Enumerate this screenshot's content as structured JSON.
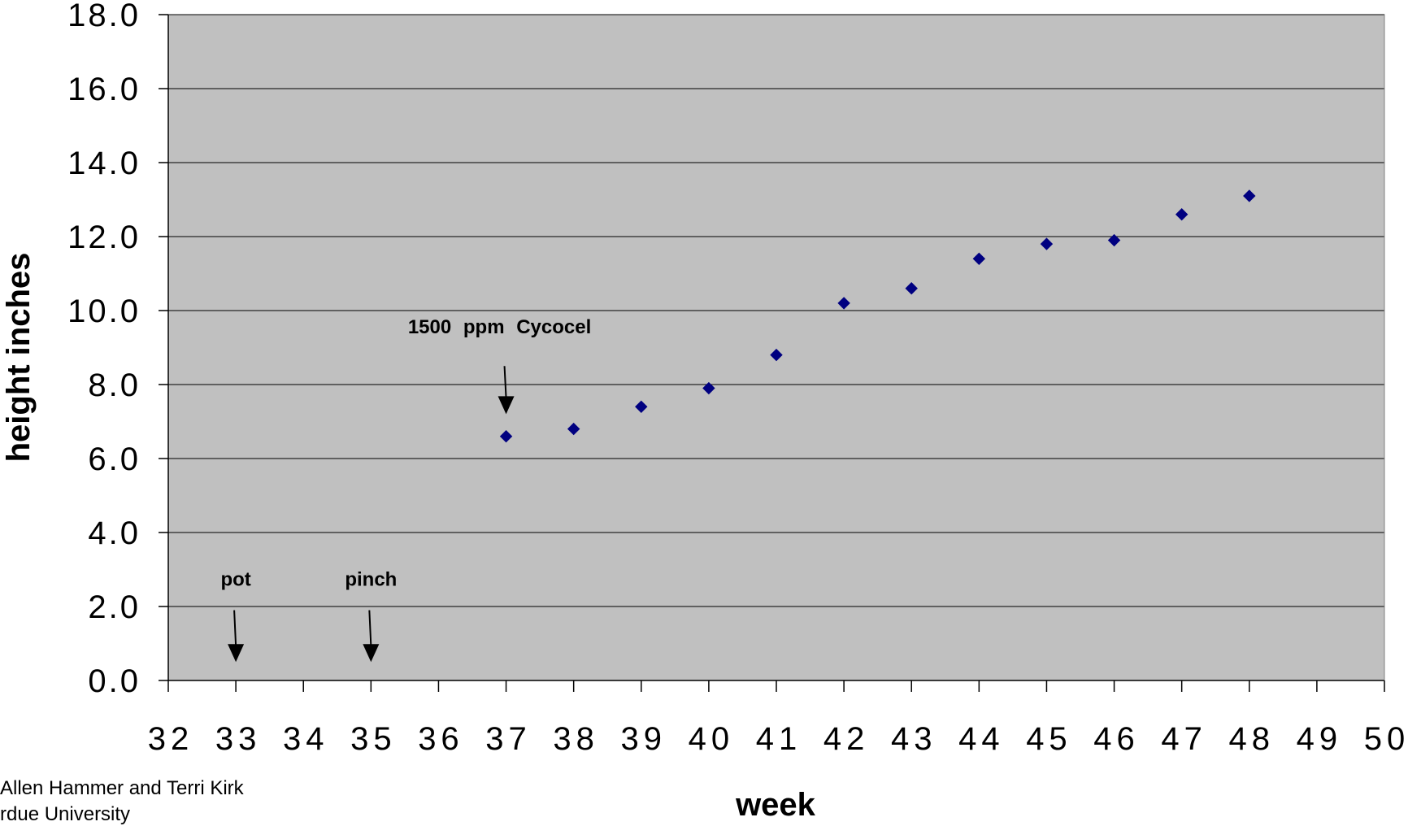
{
  "chart_data": {
    "type": "scatter",
    "title": "",
    "xlabel": "week",
    "ylabel": "height inches",
    "xlim": [
      32,
      50
    ],
    "ylim": [
      0,
      18
    ],
    "x_ticks": [
      32,
      33,
      34,
      35,
      36,
      37,
      38,
      39,
      40,
      41,
      42,
      43,
      44,
      45,
      46,
      47,
      48,
      49,
      50
    ],
    "x_tick_labels": [
      "32",
      "33",
      "34",
      "35",
      "36",
      "37",
      "38",
      "39",
      "40",
      "41",
      "42",
      "43",
      "44",
      "45",
      "46",
      "47",
      "48",
      "49",
      "50"
    ],
    "y_ticks": [
      0,
      2,
      4,
      6,
      8,
      10,
      12,
      14,
      16,
      18
    ],
    "y_tick_labels": [
      "0.0",
      "2.0",
      "4.0",
      "6.0",
      "8.0",
      "10.0",
      "12.0",
      "14.0",
      "16.0",
      "18.0"
    ],
    "grid": true,
    "legend": "none",
    "colors": {
      "plot_area": "#c0c0c0",
      "marker": "#000080",
      "gridline": "#000000"
    },
    "series": [
      {
        "marker": "diamond",
        "points": [
          {
            "x": 37,
            "y": 6.6
          },
          {
            "x": 38,
            "y": 6.8
          },
          {
            "x": 39,
            "y": 7.4
          },
          {
            "x": 40,
            "y": 7.9
          },
          {
            "x": 41,
            "y": 8.8
          },
          {
            "x": 42,
            "y": 10.2
          },
          {
            "x": 43,
            "y": 10.6
          },
          {
            "x": 44,
            "y": 11.4
          },
          {
            "x": 45,
            "y": 11.8
          },
          {
            "x": 46,
            "y": 11.9
          },
          {
            "x": 47,
            "y": 12.6
          },
          {
            "x": 48,
            "y": 13.1
          }
        ]
      }
    ],
    "annotations": [
      {
        "text": "1500 ppm Cycocel",
        "x": 37,
        "arrow_from_y": 8.5,
        "arrow_to_y": 7.2
      },
      {
        "text": "pot",
        "x": 33,
        "arrow_from_y": 1.9,
        "arrow_to_y": 0.5
      },
      {
        "text": "pinch",
        "x": 35,
        "arrow_from_y": 1.9,
        "arrow_to_y": 0.5
      }
    ]
  },
  "credits": {
    "line1": "Allen Hammer and Terri Kirk",
    "line2": "rdue University"
  }
}
